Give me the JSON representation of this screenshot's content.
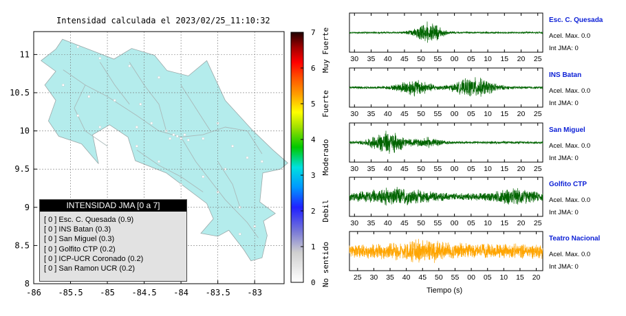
{
  "map_title": "Intensidad calculada el 2023/02/25_11:10:32",
  "chart_data": [
    {
      "type": "map",
      "title": "Intensidad calculada el 2023/02/25_11:10:32",
      "x_ticks": [
        "-86",
        "-85.5",
        "-85",
        "-84.5",
        "-84",
        "-83.5",
        "-83"
      ],
      "y_ticks": [
        "11",
        "10.5",
        "10",
        "9.5",
        "9",
        "8.5",
        "8"
      ],
      "xlim": [
        -86,
        -82.6
      ],
      "ylim": [
        8,
        11.3
      ],
      "grid": true,
      "land_color": "#b4ecec",
      "station_marks": [
        {
          "lon": -85.4,
          "lat": 11.1
        },
        {
          "lon": -85.1,
          "lat": 10.95
        },
        {
          "lon": -84.7,
          "lat": 10.85
        },
        {
          "lon": -84.3,
          "lat": 10.7
        },
        {
          "lon": -85.6,
          "lat": 10.6
        },
        {
          "lon": -85.25,
          "lat": 10.45
        },
        {
          "lon": -84.9,
          "lat": 10.4
        },
        {
          "lon": -84.55,
          "lat": 10.35
        },
        {
          "lon": -85.4,
          "lat": 10.2
        },
        {
          "lon": -85.1,
          "lat": 10.05
        },
        {
          "lon": -84.6,
          "lat": 10.05
        },
        {
          "lon": -84.4,
          "lat": 10.1
        },
        {
          "lon": -84.2,
          "lat": 10.0
        },
        {
          "lon": -84.1,
          "lat": 9.95
        },
        {
          "lon": -84.05,
          "lat": 9.93
        },
        {
          "lon": -83.95,
          "lat": 9.95
        },
        {
          "lon": -83.9,
          "lat": 9.88
        },
        {
          "lon": -84.0,
          "lat": 9.9
        },
        {
          "lon": -84.15,
          "lat": 9.9
        },
        {
          "lon": -83.7,
          "lat": 9.9
        },
        {
          "lon": -83.5,
          "lat": 10.1
        },
        {
          "lon": -83.3,
          "lat": 9.8
        },
        {
          "lon": -83.1,
          "lat": 9.65
        },
        {
          "lon": -82.9,
          "lat": 9.6
        },
        {
          "lon": -84.6,
          "lat": 9.8
        },
        {
          "lon": -84.3,
          "lat": 9.6
        },
        {
          "lon": -83.7,
          "lat": 9.4
        },
        {
          "lon": -83.5,
          "lat": 9.2
        },
        {
          "lon": -83.2,
          "lat": 9.0
        },
        {
          "lon": -83.0,
          "lat": 8.75
        },
        {
          "lon": -83.2,
          "lat": 8.65
        },
        {
          "lon": -84.0,
          "lat": 9.3
        },
        {
          "lon": -83.4,
          "lat": 9.5
        }
      ],
      "colorbar": {
        "ticks": [
          "0",
          "1",
          "2",
          "3",
          "4",
          "5",
          "6",
          "7"
        ],
        "range": [
          0,
          7
        ],
        "labels": [
          "No sentido",
          "Debil",
          "Moderado",
          "Fuerte",
          "Muy Fuerte"
        ]
      },
      "legend": {
        "title": "INTENSIDAD JMA [0 a 7]",
        "items": [
          "[ 0 ] Esc. C. Quesada (0.9)",
          "[ 0 ] INS Batan (0.3)",
          "[ 0 ] San Miguel (0.3)",
          "[ 0 ] Golfito CTP (0.2)",
          "[ 0 ] ICP-UCR Coronado (0.2)",
          "[ 0 ] San Ramon UCR (0.2)"
        ]
      }
    },
    {
      "type": "line",
      "xlabel": "Tiempo (s)",
      "series": [
        {
          "name": "Esc. C. Quesada",
          "accel": "Acel. Max. 0.0",
          "jma": "Int JMA: 0",
          "color": "#006400",
          "x_ticks": [
            "30",
            "35",
            "40",
            "45",
            "50",
            "55",
            "00",
            "05",
            "10",
            "15",
            "20",
            "25"
          ],
          "tick_start": 30,
          "x_start": 28.5,
          "x_span": 58,
          "base_amp": 0.06,
          "bursts": [
            {
              "t": 52,
              "w": 4,
              "a": 0.65
            }
          ]
        },
        {
          "name": "INS Batan",
          "accel": "Acel. Max. 0.0",
          "jma": "Int JMA: 0",
          "color": "#006400",
          "x_ticks": [
            "30",
            "35",
            "40",
            "45",
            "50",
            "55",
            "00",
            "05",
            "10",
            "15",
            "20",
            "25"
          ],
          "tick_start": 30,
          "x_start": 28.5,
          "x_span": 58,
          "base_amp": 0.08,
          "bursts": [
            {
              "t": 48,
              "w": 5,
              "a": 0.45
            },
            {
              "t": 66,
              "w": 6,
              "a": 0.55
            }
          ]
        },
        {
          "name": "San Miguel",
          "accel": "Acel. Max. 0.0",
          "jma": "Int JMA: 0",
          "color": "#006400",
          "x_ticks": [
            "30",
            "35",
            "40",
            "45",
            "50",
            "55",
            "00",
            "05",
            "10",
            "15",
            "20",
            "25"
          ],
          "tick_start": 30,
          "x_start": 28.5,
          "x_span": 58,
          "base_amp": 0.08,
          "bursts": [
            {
              "t": 40,
              "w": 5,
              "a": 0.65
            },
            {
              "t": 52,
              "w": 4,
              "a": 0.25
            }
          ]
        },
        {
          "name": "Golfito CTP",
          "accel": "Acel. Max. 0.0",
          "jma": "Int JMA: 0",
          "color": "#006400",
          "x_ticks": [
            "30",
            "35",
            "40",
            "45",
            "50",
            "55",
            "00",
            "05",
            "10",
            "15",
            "20",
            "25"
          ],
          "tick_start": 30,
          "x_start": 28.5,
          "x_span": 58,
          "base_amp": 0.22,
          "bursts": [
            {
              "t": 42,
              "w": 10,
              "a": 0.35
            },
            {
              "t": 78,
              "w": 6,
              "a": 0.3
            }
          ]
        },
        {
          "name": "Teatro Nacional",
          "accel": "Acel. Max. 0.0",
          "jma": "Int JMA: 0",
          "color": "#ffa500",
          "x_ticks": [
            "25",
            "30",
            "35",
            "40",
            "45",
            "50",
            "55",
            "00",
            "05",
            "10",
            "15",
            "20"
          ],
          "tick_start": 25,
          "x_start": 22.5,
          "x_span": 59.5,
          "base_amp": 0.45,
          "bursts": [
            {
              "t": 45,
              "w": 8,
              "a": 0.3
            }
          ]
        }
      ]
    }
  ]
}
